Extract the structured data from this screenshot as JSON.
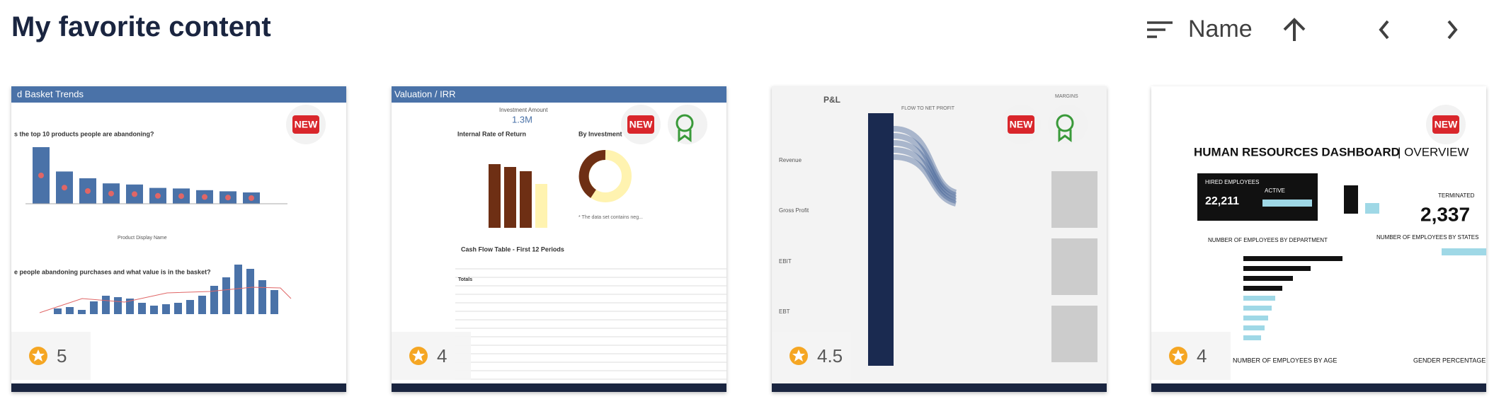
{
  "header": {
    "title": "My favorite content",
    "sort_label": "Name"
  },
  "cards": [
    {
      "thumbnail": {
        "texts": [
          "d Basket Trends",
          "s the top 10 products people are abandoning?",
          "e people abandoning purchases and what value is in the basket?",
          "Product Display Name"
        ]
      },
      "badges": [
        "NEW"
      ],
      "rating": 5
    },
    {
      "thumbnail": {
        "texts": [
          "Valuation / IRR",
          "Investment Amount",
          "1.3M",
          "Internal Rate of Return",
          "By Investment T",
          "Cash Flow Table - First 12 Periods",
          "Totals",
          "* The data set contains neg..."
        ]
      },
      "badges": [
        "NEW"
      ],
      "rating": 4
    },
    {
      "thumbnail": {
        "texts": [
          "P&L",
          "FLOW TO NET PROFIT",
          "MARGINS",
          "Revenue",
          "Gross Profit",
          "EBIT",
          "EBT"
        ]
      },
      "badges": [
        "NEW"
      ],
      "rating": 4.5
    },
    {
      "thumbnail": {
        "texts": [
          "HUMAN RESOURCES DASHBOARD",
          "| OVERVIEW",
          "HIRED EMPLOYEES",
          "22,211",
          "ACTIVE",
          "TERMINATED",
          "2,337",
          "NUMBER OF EMPLOYEES BY DEPARTMENT",
          "NUMBER OF EMPLOYEES BY STATES",
          "NUMBER OF EMPLOYEES BY AGE",
          "GENDER PERCENTAGE"
        ]
      },
      "badges": [
        "NEW"
      ],
      "rating": 4
    }
  ]
}
